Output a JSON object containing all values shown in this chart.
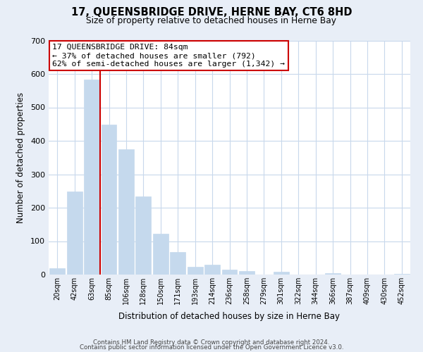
{
  "title": "17, QUEENSBRIDGE DRIVE, HERNE BAY, CT6 8HD",
  "subtitle": "Size of property relative to detached houses in Herne Bay",
  "xlabel": "Distribution of detached houses by size in Herne Bay",
  "ylabel": "Number of detached properties",
  "bar_labels": [
    "20sqm",
    "42sqm",
    "63sqm",
    "85sqm",
    "106sqm",
    "128sqm",
    "150sqm",
    "171sqm",
    "193sqm",
    "214sqm",
    "236sqm",
    "258sqm",
    "279sqm",
    "301sqm",
    "322sqm",
    "344sqm",
    "366sqm",
    "387sqm",
    "409sqm",
    "430sqm",
    "452sqm"
  ],
  "bar_values": [
    18,
    248,
    583,
    449,
    374,
    233,
    122,
    68,
    23,
    30,
    14,
    10,
    0,
    9,
    0,
    0,
    5,
    0,
    0,
    0,
    2
  ],
  "bar_color": "#c5d9ed",
  "bar_edge_color": "#c5d9ed",
  "vline_color": "#cc0000",
  "ylim": [
    0,
    700
  ],
  "yticks": [
    0,
    100,
    200,
    300,
    400,
    500,
    600,
    700
  ],
  "annotation_title": "17 QUEENSBRIDGE DRIVE: 84sqm",
  "annotation_line1": "← 37% of detached houses are smaller (792)",
  "annotation_line2": "62% of semi-detached houses are larger (1,342) →",
  "annotation_box_color": "#ffffff",
  "annotation_box_edge": "#cc0000",
  "footer1": "Contains HM Land Registry data © Crown copyright and database right 2024.",
  "footer2": "Contains public sector information licensed under the Open Government Licence v3.0.",
  "bg_color": "#e8eef7",
  "plot_bg_color": "#ffffff",
  "grid_color": "#c8d8ec"
}
